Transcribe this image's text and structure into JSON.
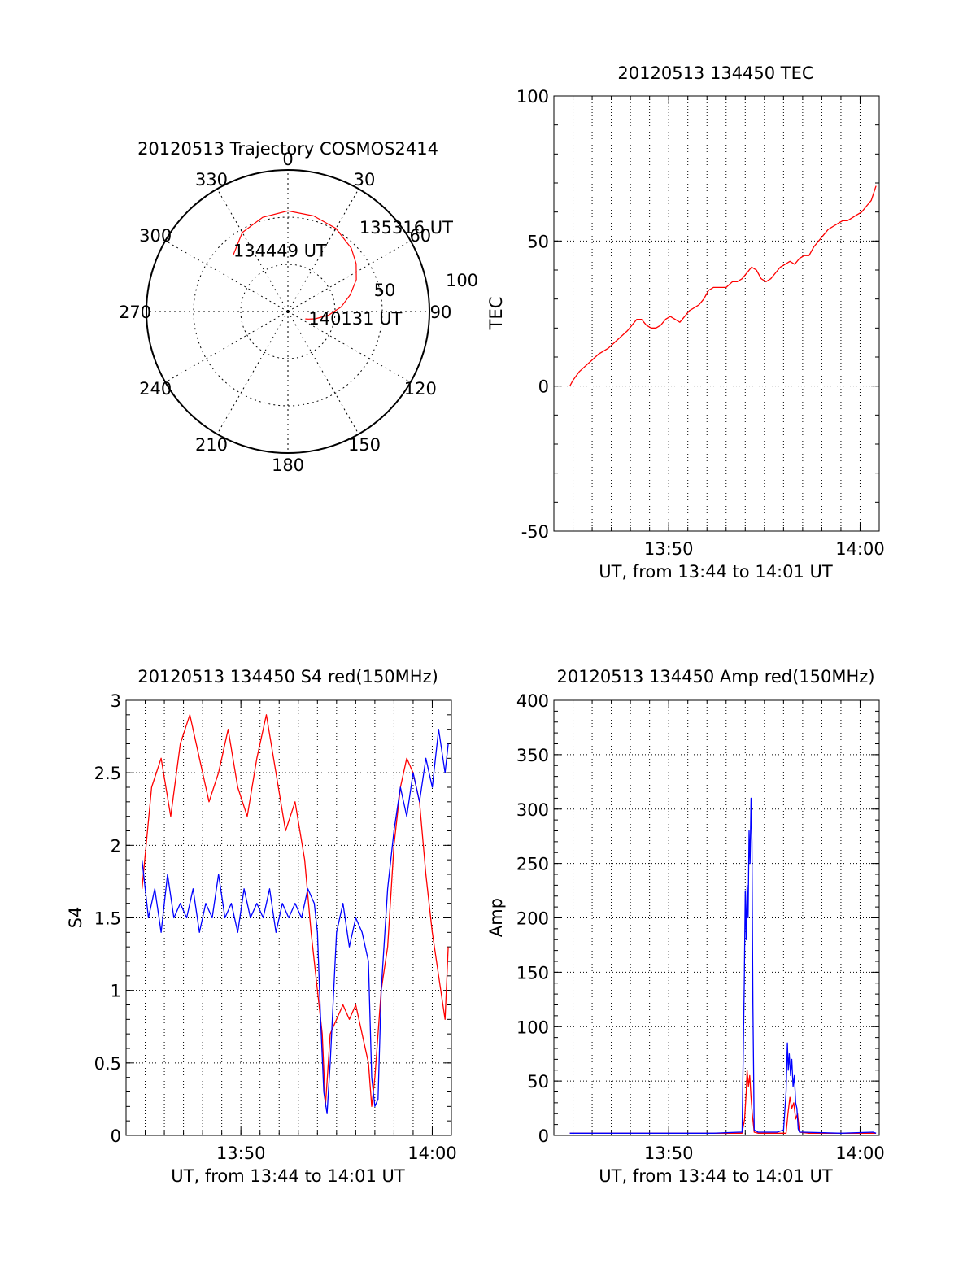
{
  "chart_data": [
    {
      "id": "polar",
      "type": "polar",
      "title": "20120513 Trajectory COSMOS2414",
      "azimuth_labels": [
        "0",
        "30",
        "60",
        "90",
        "120",
        "150",
        "180",
        "210",
        "240",
        "270",
        "300",
        "330"
      ],
      "radial_labels": [
        "50",
        "100"
      ],
      "elevation_rings": [
        0,
        50
      ],
      "trajectory": {
        "color": "#ff0000",
        "points": [
          [
            316,
            40
          ],
          [
            330,
            32
          ],
          [
            345,
            28
          ],
          [
            0,
            26
          ],
          [
            15,
            27
          ],
          [
            30,
            29
          ],
          [
            45,
            33
          ],
          [
            55,
            37
          ],
          [
            65,
            42
          ],
          [
            75,
            49
          ],
          [
            85,
            56
          ],
          [
            95,
            64
          ],
          [
            105,
            72
          ],
          [
            110,
            76
          ],
          [
            113,
            78
          ]
        ]
      },
      "annotations": [
        {
          "text": "134449 UT",
          "az": 316,
          "el": 40
        },
        {
          "text": "135316 UT",
          "az": 45,
          "el": 33
        },
        {
          "text": "140131 UT",
          "az": 113,
          "el": 78
        }
      ]
    },
    {
      "id": "tec",
      "type": "line",
      "title": "20120513 134450 TEC",
      "xlabel": "UT, from 13:44 to 14:01 UT",
      "ylabel": "TEC",
      "xlim": [
        0,
        1020
      ],
      "ylim": [
        -50,
        100
      ],
      "yticks": [
        -50,
        0,
        50,
        100
      ],
      "xticks": [
        {
          "value": 360,
          "label": "13:50"
        },
        {
          "value": 960,
          "label": "14:00"
        }
      ],
      "grid": true,
      "series": [
        {
          "color": "#ff0000",
          "x": [
            50,
            60,
            80,
            100,
            120,
            140,
            170,
            200,
            230,
            260,
            275,
            290,
            305,
            320,
            335,
            350,
            365,
            380,
            395,
            410,
            425,
            440,
            455,
            470,
            485,
            500,
            520,
            540,
            560,
            575,
            590,
            605,
            620,
            635,
            650,
            665,
            680,
            695,
            710,
            725,
            740,
            755,
            770,
            785,
            800,
            815,
            830,
            845,
            860,
            875,
            890,
            905,
            920,
            935,
            950,
            965,
            980,
            995,
            1010
          ],
          "y": [
            0,
            2,
            5,
            7,
            9,
            11,
            13,
            16,
            19,
            23,
            23,
            21,
            20,
            20,
            21,
            23,
            24,
            23,
            22,
            24,
            26,
            27,
            28,
            30,
            33,
            34,
            34,
            34,
            36,
            36,
            37,
            39,
            41,
            40,
            37,
            36,
            37,
            39,
            41,
            42,
            43,
            42,
            44,
            45,
            45,
            48,
            50,
            52,
            54,
            55,
            56,
            57,
            57,
            58,
            59,
            60,
            62,
            64,
            69
          ]
        }
      ]
    },
    {
      "id": "s4",
      "type": "line",
      "title": "20120513 134450 S4 red(150MHz)",
      "xlabel": "UT, from 13:44 to 14:01 UT",
      "ylabel": "S4",
      "xlim": [
        0,
        1020
      ],
      "ylim": [
        0,
        3
      ],
      "yticks": [
        0,
        0.5,
        1,
        1.5,
        2,
        2.5,
        3
      ],
      "xticks": [
        {
          "value": 360,
          "label": "13:50"
        },
        {
          "value": 960,
          "label": "14:00"
        }
      ],
      "grid": true,
      "series": [
        {
          "color": "#ff0000",
          "x": [
            50,
            80,
            110,
            140,
            170,
            200,
            230,
            260,
            290,
            320,
            350,
            380,
            410,
            440,
            470,
            500,
            530,
            560,
            580,
            600,
            615,
            625,
            640,
            660,
            680,
            700,
            720,
            740,
            760,
            770,
            780,
            790,
            800,
            820,
            840,
            860,
            880,
            900,
            920,
            940,
            960,
            980,
            1000,
            1010
          ],
          "y": [
            1.7,
            2.4,
            2.6,
            2.2,
            2.7,
            2.9,
            2.6,
            2.3,
            2.5,
            2.8,
            2.4,
            2.2,
            2.6,
            2.9,
            2.5,
            2.1,
            2.3,
            1.9,
            1.4,
            1.0,
            0.7,
            0.2,
            0.7,
            0.8,
            0.9,
            0.8,
            0.9,
            0.7,
            0.5,
            0.2,
            0.4,
            0.7,
            1.0,
            1.3,
            2.0,
            2.4,
            2.6,
            2.5,
            2.3,
            1.8,
            1.4,
            1.1,
            0.8,
            1.3
          ]
        },
        {
          "color": "#0000ff",
          "x": [
            50,
            70,
            90,
            110,
            130,
            150,
            170,
            190,
            210,
            230,
            250,
            270,
            290,
            310,
            330,
            350,
            370,
            390,
            410,
            430,
            450,
            470,
            490,
            510,
            530,
            550,
            570,
            590,
            600,
            610,
            620,
            630,
            640,
            660,
            680,
            700,
            720,
            740,
            760,
            770,
            780,
            790,
            800,
            820,
            840,
            860,
            880,
            900,
            920,
            940,
            960,
            980,
            1000,
            1010
          ],
          "y": [
            1.9,
            1.5,
            1.7,
            1.4,
            1.8,
            1.5,
            1.6,
            1.5,
            1.7,
            1.4,
            1.6,
            1.5,
            1.8,
            1.5,
            1.6,
            1.4,
            1.7,
            1.5,
            1.6,
            1.5,
            1.7,
            1.4,
            1.6,
            1.5,
            1.6,
            1.5,
            1.7,
            1.6,
            1.4,
            0.8,
            0.3,
            0.15,
            0.5,
            1.4,
            1.6,
            1.3,
            1.5,
            1.4,
            1.2,
            0.4,
            0.2,
            0.25,
            1.0,
            1.7,
            2.1,
            2.4,
            2.2,
            2.5,
            2.3,
            2.6,
            2.4,
            2.8,
            2.5,
            2.7
          ]
        }
      ]
    },
    {
      "id": "amp",
      "type": "line",
      "title": "20120513 134450 Amp red(150MHz)",
      "xlabel": "UT, from 13:44 to 14:01 UT",
      "ylabel": "Amp",
      "xlim": [
        0,
        1020
      ],
      "ylim": [
        0,
        400
      ],
      "yticks": [
        0,
        50,
        100,
        150,
        200,
        250,
        300,
        350,
        400
      ],
      "xticks": [
        {
          "value": 360,
          "label": "13:50"
        },
        {
          "value": 960,
          "label": "14:00"
        }
      ],
      "grid": true,
      "series": [
        {
          "color": "#ff0000",
          "x": [
            50,
            200,
            400,
            500,
            590,
            598,
            603,
            606,
            610,
            614,
            618,
            622,
            628,
            640,
            700,
            728,
            734,
            740,
            746,
            752,
            758,
            764,
            770,
            800,
            900,
            1010
          ],
          "y": [
            2,
            2,
            2,
            2,
            2,
            15,
            40,
            60,
            45,
            55,
            35,
            20,
            3,
            2,
            2,
            2,
            20,
            35,
            25,
            30,
            15,
            20,
            3,
            2,
            2,
            2
          ]
        },
        {
          "color": "#0000ff",
          "x": [
            50,
            200,
            400,
            500,
            580,
            590,
            597,
            600,
            603,
            606,
            609,
            612,
            615,
            618,
            621,
            624,
            628,
            640,
            700,
            720,
            728,
            732,
            735,
            738,
            742,
            746,
            750,
            754,
            758,
            762,
            766,
            770,
            780,
            900,
            1000,
            1010
          ],
          "y": [
            2,
            2,
            2,
            2,
            3,
            3,
            140,
            225,
            180,
            230,
            200,
            280,
            250,
            310,
            270,
            120,
            5,
            3,
            3,
            5,
            40,
            85,
            60,
            75,
            55,
            70,
            45,
            55,
            30,
            25,
            6,
            3,
            3,
            2,
            3,
            2
          ]
        }
      ]
    }
  ]
}
